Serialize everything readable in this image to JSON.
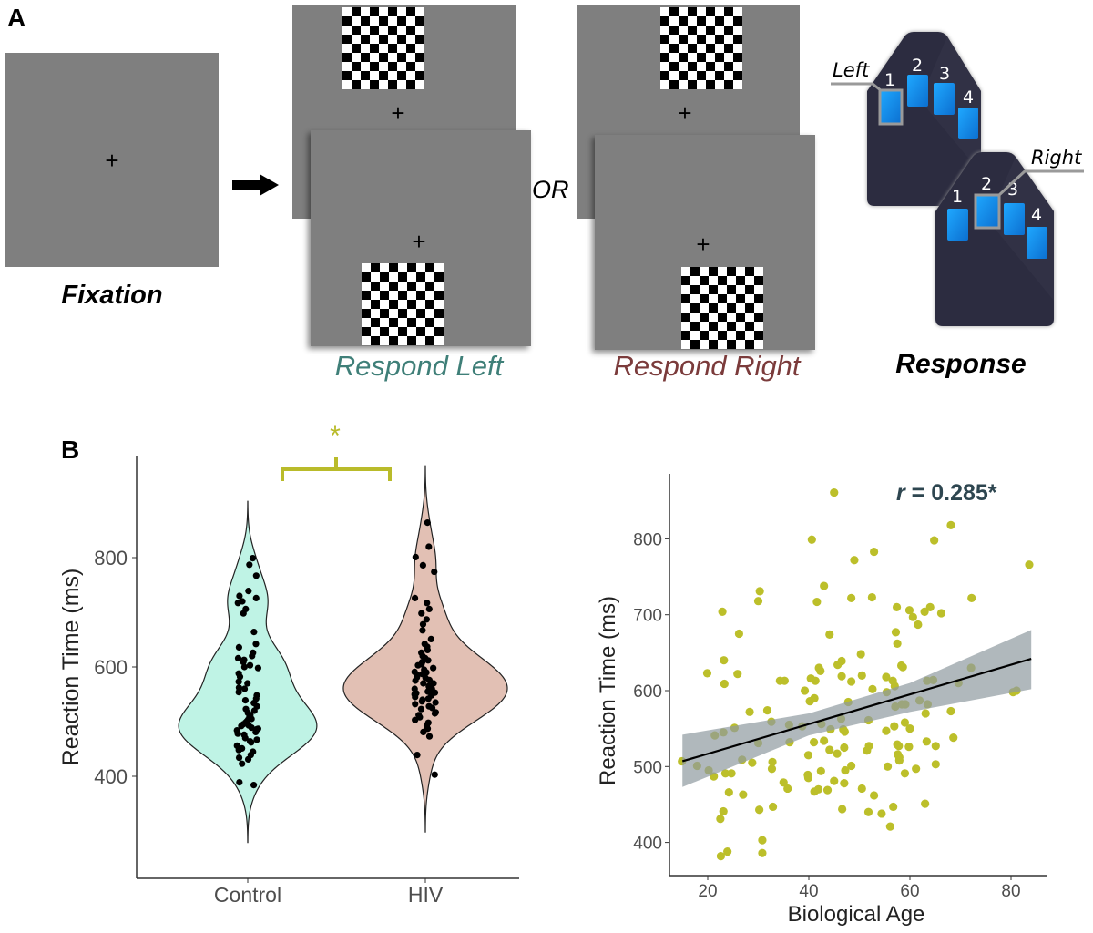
{
  "panel_a": {
    "label": "A",
    "fixation_label": "Fixation",
    "cross": "+",
    "or_label": "OR",
    "respond_left": "Respond Left",
    "respond_right": "Respond Right",
    "response_label": "Response",
    "left_label": "Left",
    "right_label": "Right",
    "button_numbers": [
      "1",
      "2",
      "3",
      "4"
    ]
  },
  "panel_b": {
    "label": "B"
  },
  "colors": {
    "screen": "#7f7f7f",
    "respond_left": "#3f7f78",
    "respond_right": "#7b3b3b",
    "control_fill": "#bff3e5",
    "hiv_fill": "#e2c0b4",
    "significance": "#b9bb2a",
    "scatter_point": "#bcbf2a",
    "ci_band": "#8f9aa0",
    "annotation": "#2e4650",
    "device": "#2c2c40",
    "device_button": "#1a8fe8"
  },
  "chart_data": [
    {
      "type": "violin",
      "categories": [
        "Control",
        "HIV"
      ],
      "ylabel": "Reaction Time (ms)",
      "xlabel": "",
      "yticks": [
        400,
        600,
        800
      ],
      "ylim": [
        250,
        960
      ],
      "significance": "*",
      "series": [
        {
          "name": "Control",
          "values": [
            799,
            787,
            767,
            739,
            730,
            726,
            720,
            717,
            706,
            698,
            664,
            642,
            636,
            626,
            620,
            616,
            613,
            609,
            603,
            598,
            588,
            582,
            573,
            570,
            562,
            554,
            548,
            542,
            539,
            534,
            528,
            523,
            516,
            512,
            508,
            503,
            498,
            495,
            492,
            489,
            487,
            484,
            481,
            478,
            476,
            470,
            467,
            464,
            462,
            456,
            451,
            448,
            445,
            439,
            434,
            431,
            423,
            389,
            384,
            500,
            493,
            486,
            505,
            520,
            560,
            600
          ]
        },
        {
          "name": "HIV",
          "values": [
            864,
            820,
            801,
            786,
            774,
            726,
            717,
            706,
            698,
            687,
            678,
            667,
            651,
            642,
            637,
            631,
            626,
            620,
            616,
            609,
            603,
            598,
            591,
            587,
            581,
            576,
            570,
            564,
            560,
            556,
            553,
            548,
            542,
            537,
            532,
            528,
            523,
            517,
            512,
            508,
            503,
            498,
            492,
            487,
            481,
            473,
            439,
            403,
            545,
            550,
            555,
            560,
            565,
            570,
            575,
            580,
            585,
            590,
            535,
            525,
            515,
            595,
            605,
            612,
            540,
            552
          ]
        }
      ]
    },
    {
      "type": "scatter",
      "xlabel": "Biological Age",
      "ylabel": "Reaction Time (ms)",
      "xticks": [
        20,
        40,
        60,
        80
      ],
      "yticks": [
        400,
        500,
        600,
        700,
        800
      ],
      "xlim": [
        11,
        86
      ],
      "ylim": [
        370,
        880
      ],
      "annotation": {
        "symbol": "r",
        "text": " = 0.285*"
      },
      "regression": {
        "x": [
          15,
          84
        ],
        "y": [
          507,
          642
        ]
      },
      "confidence_band": {
        "x": [
          15,
          40,
          60,
          84
        ],
        "lower": [
          473,
          541,
          572,
          602
        ],
        "upper": [
          542,
          570,
          610,
          680
        ]
      },
      "x": [
        14.9,
        17.9,
        19.9,
        20.2,
        21.2,
        21.4,
        22.5,
        22.6,
        22.9,
        23.1,
        23.2,
        23.3,
        23.1,
        23.5,
        23.9,
        24.2,
        24.7,
        25.3,
        25.9,
        26.2,
        26.8,
        27.0,
        28.3,
        28.8,
        30.0,
        30.3,
        30.0,
        30.2,
        30.8,
        30.8,
        31.8,
        32.6,
        32.8,
        32.7,
        32.9,
        34.3,
        35.2,
        35.0,
        35.8,
        36.1,
        36.2,
        38.7,
        39.2,
        39.9,
        39.8,
        39.9,
        40.4,
        40.6,
        40.2,
        41.1,
        41.1,
        41.0,
        41.3,
        41.6,
        41.9,
        42.0,
        42.3,
        42.5,
        43.0,
        43.0,
        42.4,
        43.7,
        44.1,
        44.1,
        44.3,
        45.0,
        45.0,
        45.6,
        45.7,
        46.5,
        46.5,
        46.4,
        46.6,
        46.8,
        47.0,
        47.1,
        47.2,
        47.0,
        47.8,
        48.4,
        48.4,
        48.4,
        49.0,
        50.3,
        50.5,
        50.5,
        51.5,
        51.8,
        51.8,
        51.9,
        52.5,
        52.6,
        52.9,
        52.9,
        54.4,
        55.3,
        55.4,
        55.3,
        55.6,
        56.1,
        56.6,
        56.7,
        56.9,
        57.0,
        57.1,
        57.2,
        57.4,
        57.5,
        57.5,
        57.8,
        57.6,
        57.9,
        57.9,
        58.3,
        58.6,
        58.4,
        59.1,
        59.0,
        59.0,
        59.8,
        59.9,
        60.0,
        60.6,
        61.2,
        61.6,
        61.9,
        62.9,
        63.0,
        63.1,
        63.3,
        63.4,
        63.5,
        64.0,
        64.6,
        64.8,
        65.1,
        65.1,
        66.2,
        68.1,
        68.1,
        68.6,
        69.6,
        72.1,
        72.2,
        80.4,
        81.1,
        83.6
      ],
      "y": [
        507,
        501,
        623,
        495,
        487,
        541,
        431,
        382,
        704,
        441,
        640,
        609,
        545,
        491,
        388,
        466,
        491,
        551,
        622,
        675,
        509,
        463,
        572,
        505,
        718,
        731,
        531,
        443,
        403,
        386,
        574,
        559,
        506,
        497,
        447,
        613,
        613,
        479,
        471,
        555,
        532,
        553,
        600,
        515,
        489,
        485,
        616,
        799,
        586,
        590,
        467,
        532,
        613,
        717,
        470,
        630,
        626,
        556,
        534,
        738,
        494,
        469,
        522,
        674,
        549,
        861,
        481,
        517,
        634,
        639,
        619,
        563,
        444,
        549,
        525,
        546,
        495,
        478,
        585,
        722,
        612,
        501,
        772,
        648,
        471,
        620,
        521,
        561,
        440,
        527,
        723,
        602,
        783,
        462,
        438,
        618,
        598,
        547,
        500,
        421,
        613,
        447,
        553,
        606,
        579,
        677,
        710,
        662,
        529,
        527,
        516,
        512,
        508,
        633,
        631,
        582,
        582,
        558,
        491,
        526,
        706,
        550,
        697,
        497,
        687,
        587,
        704,
        451,
        570,
        533,
        613,
        582,
        710,
        614,
        798,
        527,
        503,
        702,
        818,
        573,
        538,
        610,
        630,
        722,
        598,
        600,
        766
      ]
    }
  ]
}
